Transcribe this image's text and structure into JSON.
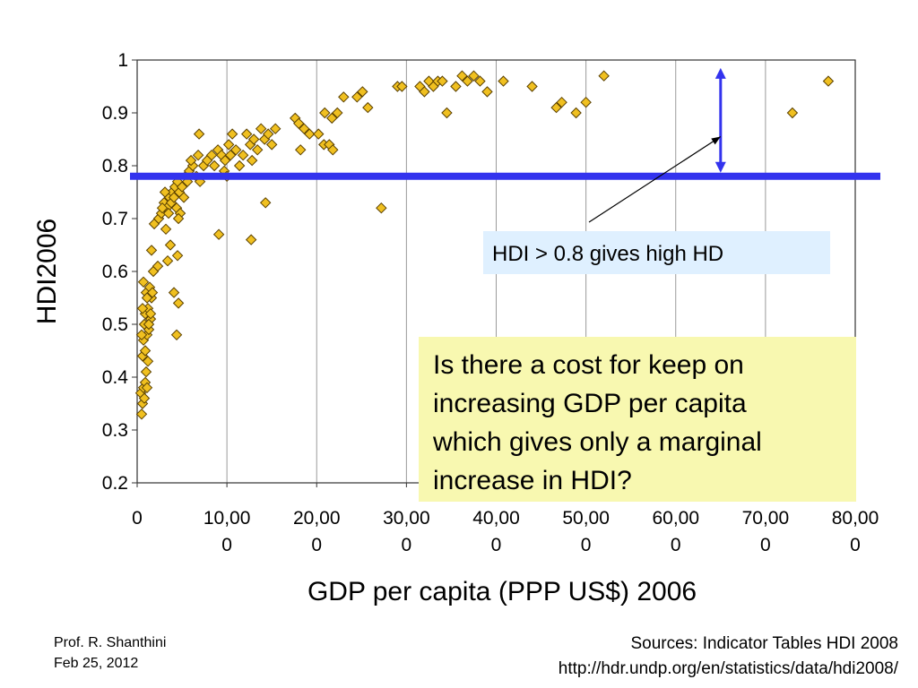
{
  "chart_data": {
    "type": "scatter",
    "title": "",
    "xlabel": "GDP per capita (PPP US$) 2006",
    "ylabel": "HDI2006",
    "xlim": [
      0,
      80000
    ],
    "ylim": [
      0.2,
      1.0
    ],
    "x_ticks": [
      {
        "value": 0,
        "lines": [
          "0"
        ]
      },
      {
        "value": 10000,
        "lines": [
          "10,00",
          "0"
        ]
      },
      {
        "value": 20000,
        "lines": [
          "20,00",
          "0"
        ]
      },
      {
        "value": 30000,
        "lines": [
          "30,00",
          "0"
        ]
      },
      {
        "value": 40000,
        "lines": [
          "40,00",
          "0"
        ]
      },
      {
        "value": 50000,
        "lines": [
          "50,00",
          "0"
        ]
      },
      {
        "value": 60000,
        "lines": [
          "60,00",
          "0"
        ]
      },
      {
        "value": 70000,
        "lines": [
          "70,00",
          "0"
        ]
      },
      {
        "value": 80000,
        "lines": [
          "80,00",
          "0"
        ]
      }
    ],
    "y_ticks": [
      {
        "value": 0.2,
        "label": "0.2"
      },
      {
        "value": 0.3,
        "label": "0.3"
      },
      {
        "value": 0.4,
        "label": "0.4"
      },
      {
        "value": 0.5,
        "label": "0.5"
      },
      {
        "value": 0.6,
        "label": "0.6"
      },
      {
        "value": 0.7,
        "label": "0.7"
      },
      {
        "value": 0.8,
        "label": "0.8"
      },
      {
        "value": 0.9,
        "label": "0.9"
      },
      {
        "value": 1.0,
        "label": "1"
      }
    ],
    "grid": {
      "vertical": true,
      "horizontal": false
    },
    "marker": {
      "shape": "diamond",
      "fill": "#f0c020",
      "stroke": "#5a4000"
    },
    "points": [
      [
        500,
        0.33
      ],
      [
        600,
        0.35
      ],
      [
        400,
        0.37
      ],
      [
        700,
        0.38
      ],
      [
        900,
        0.39
      ],
      [
        1100,
        0.38
      ],
      [
        800,
        0.36
      ],
      [
        1000,
        0.41
      ],
      [
        1200,
        0.43
      ],
      [
        600,
        0.44
      ],
      [
        900,
        0.45
      ],
      [
        700,
        0.47
      ],
      [
        1100,
        0.48
      ],
      [
        500,
        0.48
      ],
      [
        1300,
        0.49
      ],
      [
        800,
        0.5
      ],
      [
        1500,
        0.51
      ],
      [
        900,
        0.52
      ],
      [
        1200,
        0.53
      ],
      [
        600,
        0.53
      ],
      [
        1600,
        0.55
      ],
      [
        1000,
        0.56
      ],
      [
        1400,
        0.57
      ],
      [
        700,
        0.58
      ],
      [
        1800,
        0.6
      ],
      [
        1100,
        0.55
      ],
      [
        1300,
        0.5
      ],
      [
        1500,
        0.52
      ],
      [
        1700,
        0.56
      ],
      [
        1600,
        0.64
      ],
      [
        2300,
        0.61
      ],
      [
        3400,
        0.62
      ],
      [
        3700,
        0.65
      ],
      [
        4500,
        0.63
      ],
      [
        4100,
        0.56
      ],
      [
        4600,
        0.54
      ],
      [
        4400,
        0.48
      ],
      [
        1900,
        0.69
      ],
      [
        2400,
        0.7
      ],
      [
        2700,
        0.71
      ],
      [
        3000,
        0.73
      ],
      [
        3300,
        0.72
      ],
      [
        3600,
        0.74
      ],
      [
        3900,
        0.75
      ],
      [
        4200,
        0.76
      ],
      [
        4500,
        0.77
      ],
      [
        2800,
        0.72
      ],
      [
        3100,
        0.75
      ],
      [
        3500,
        0.71
      ],
      [
        3800,
        0.73
      ],
      [
        4100,
        0.74
      ],
      [
        4400,
        0.72
      ],
      [
        4700,
        0.75
      ],
      [
        5000,
        0.76
      ],
      [
        5400,
        0.78
      ],
      [
        5800,
        0.79
      ],
      [
        6200,
        0.8
      ],
      [
        6600,
        0.78
      ],
      [
        7000,
        0.77
      ],
      [
        7400,
        0.8
      ],
      [
        6000,
        0.81
      ],
      [
        6800,
        0.82
      ],
      [
        5600,
        0.77
      ],
      [
        5200,
        0.74
      ],
      [
        4800,
        0.71
      ],
      [
        3200,
        0.68
      ],
      [
        4600,
        0.7
      ],
      [
        6900,
        0.86
      ],
      [
        7800,
        0.81
      ],
      [
        8300,
        0.82
      ],
      [
        8600,
        0.8
      ],
      [
        9000,
        0.83
      ],
      [
        9400,
        0.82
      ],
      [
        9800,
        0.81
      ],
      [
        10200,
        0.84
      ],
      [
        10600,
        0.86
      ],
      [
        11000,
        0.83
      ],
      [
        11400,
        0.8
      ],
      [
        11800,
        0.82
      ],
      [
        12200,
        0.86
      ],
      [
        12600,
        0.84
      ],
      [
        13000,
        0.85
      ],
      [
        13400,
        0.83
      ],
      [
        13800,
        0.87
      ],
      [
        14200,
        0.85
      ],
      [
        14600,
        0.86
      ],
      [
        15000,
        0.84
      ],
      [
        15400,
        0.87
      ],
      [
        9700,
        0.79
      ],
      [
        10000,
        0.78
      ],
      [
        10400,
        0.82
      ],
      [
        12800,
        0.81
      ],
      [
        9100,
        0.67
      ],
      [
        12700,
        0.66
      ],
      [
        14300,
        0.73
      ],
      [
        17600,
        0.89
      ],
      [
        18000,
        0.88
      ],
      [
        18600,
        0.87
      ],
      [
        19200,
        0.86
      ],
      [
        18200,
        0.83
      ],
      [
        20200,
        0.86
      ],
      [
        20800,
        0.84
      ],
      [
        21400,
        0.84
      ],
      [
        21800,
        0.83
      ],
      [
        20900,
        0.9
      ],
      [
        21700,
        0.89
      ],
      [
        22300,
        0.9
      ],
      [
        23000,
        0.93
      ],
      [
        24500,
        0.93
      ],
      [
        25100,
        0.94
      ],
      [
        25700,
        0.91
      ],
      [
        27200,
        0.72
      ],
      [
        29000,
        0.95
      ],
      [
        29500,
        0.95
      ],
      [
        31500,
        0.95
      ],
      [
        32000,
        0.94
      ],
      [
        32500,
        0.96
      ],
      [
        33000,
        0.95
      ],
      [
        33500,
        0.96
      ],
      [
        34000,
        0.96
      ],
      [
        34500,
        0.9
      ],
      [
        35500,
        0.95
      ],
      [
        36200,
        0.97
      ],
      [
        36800,
        0.96
      ],
      [
        37500,
        0.97
      ],
      [
        38200,
        0.96
      ],
      [
        39000,
        0.94
      ],
      [
        40800,
        0.96
      ],
      [
        44000,
        0.95
      ],
      [
        46700,
        0.91
      ],
      [
        47300,
        0.92
      ],
      [
        48900,
        0.9
      ],
      [
        50000,
        0.92
      ],
      [
        52000,
        0.97
      ],
      [
        73000,
        0.9
      ],
      [
        77000,
        0.96
      ]
    ],
    "threshold_line": {
      "y": 0.78,
      "color": "#3333ee"
    },
    "range_arrow": {
      "x": 65000,
      "y_top": 0.985,
      "y_bottom": 0.78,
      "color": "#3333ee"
    },
    "annotation": {
      "text": "HDI > 0.8 gives high HD",
      "box_color": "#dff0ff",
      "points_to": {
        "x": 65000,
        "y": 0.855
      }
    }
  },
  "question": {
    "lines": [
      "Is there a cost for keep on",
      "increasing GDP per capita",
      "which gives only a marginal",
      "increase in HDI?"
    ],
    "box_color": "#f8f8b0"
  },
  "footer": {
    "author": "Prof. R. Shanthini",
    "date": "Feb 25, 2012",
    "sources": "Sources: Indicator Tables HDI 2008",
    "url": "http://hdr.undp.org/en/statistics/data/hdi2008/"
  }
}
